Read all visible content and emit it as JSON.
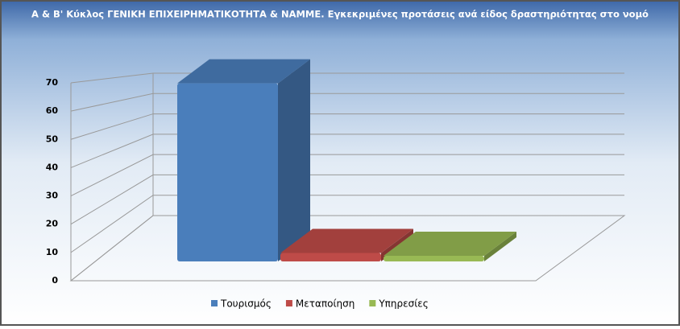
{
  "chart_data": {
    "type": "bar3d",
    "title": "Α & Β' Κύκλος ΓΕΝΙΚΗ ΕΠΙΧΕΙΡΗΜΑΤΙΚΟΤΗΤΑ & ΝΑΜΜΕ. Εγκεκριμένες προτάσεις ανά είδος δραστηριότητας στο νομό",
    "categories": [
      "Τουρισμός",
      "Μεταποίηση",
      "Υπηρεσίες"
    ],
    "values": [
      63,
      3,
      2
    ],
    "colors": [
      "#4a7ebb",
      "#be4b48",
      "#98b954"
    ],
    "ylim": [
      0,
      70
    ],
    "yticks": [
      0,
      10,
      20,
      30,
      40,
      50,
      60,
      70
    ],
    "grid": true,
    "legend": "bottom"
  }
}
